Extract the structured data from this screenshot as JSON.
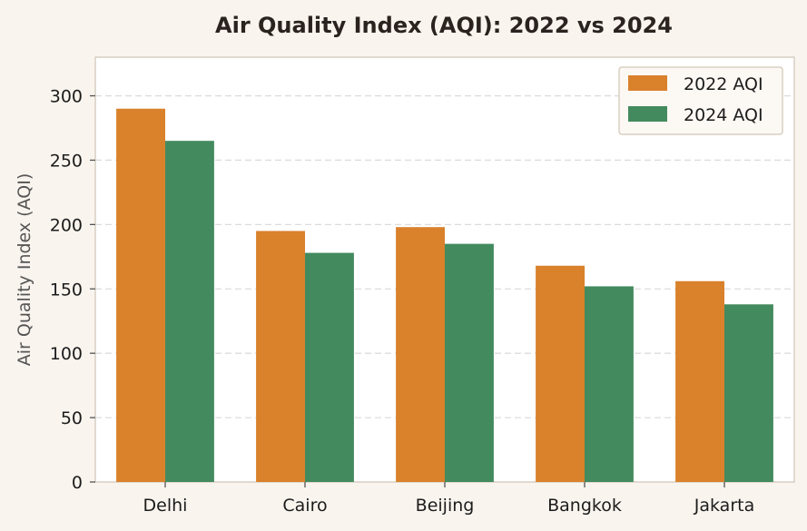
{
  "chart_data": {
    "type": "bar",
    "title": "Air Quality Index (AQI): 2022 vs 2024",
    "xlabel": "",
    "ylabel": "Air Quality Index (AQI)",
    "categories": [
      "Delhi",
      "Cairo",
      "Beijing",
      "Bangkok",
      "Jakarta"
    ],
    "series": [
      {
        "name": "2022 AQI",
        "color": "#d9812b",
        "values": [
          290,
          195,
          198,
          168,
          156
        ]
      },
      {
        "name": "2024 AQI",
        "color": "#438a5e",
        "values": [
          265,
          178,
          185,
          152,
          138
        ]
      }
    ],
    "ylim": [
      0,
      330
    ],
    "yticks": [
      0,
      50,
      100,
      150,
      200,
      250,
      300
    ],
    "grid": true,
    "legend_position": "top-right"
  }
}
